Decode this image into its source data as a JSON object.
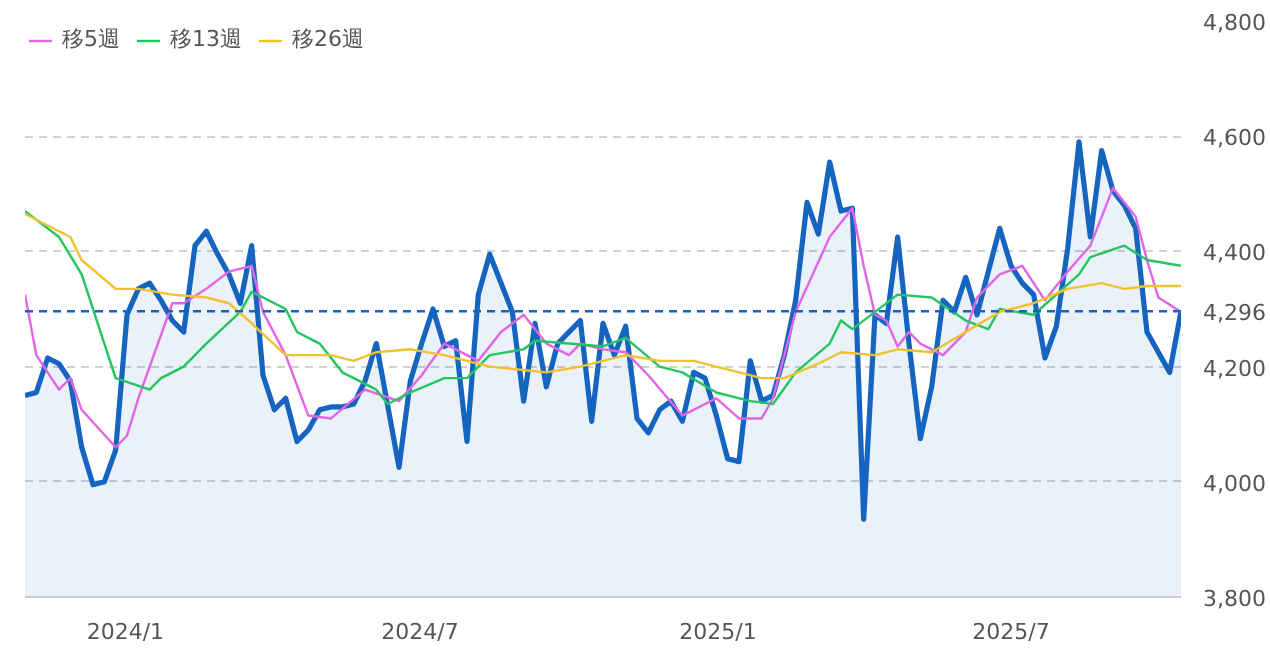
{
  "chart_data": {
    "type": "line",
    "grid": "y",
    "legend": "top left",
    "xlim": [
      "2023-10-31",
      "2025-10-14"
    ],
    "xticks": [
      {
        "value": "2024-01-01",
        "label": "2024/1"
      },
      {
        "value": "2024-07-01",
        "label": "2024/7"
      },
      {
        "value": "2025-01-01",
        "label": "2025/1"
      },
      {
        "value": "2025-07-01",
        "label": "2025/7"
      }
    ],
    "ylim": [
      3800,
      4800
    ],
    "yticks": [
      {
        "value": 3800,
        "label": "3,800"
      },
      {
        "value": 4000,
        "label": "4,000"
      },
      {
        "value": 4200,
        "label": "4,200"
      },
      {
        "value": 4400,
        "label": "4,400"
      },
      {
        "value": 4600,
        "label": "4,600"
      },
      {
        "value": 4800,
        "label": "4,800"
      }
    ],
    "ref_lines": [
      {
        "axis": "y",
        "value": 4296,
        "label": "4,296",
        "color": "#1565c0",
        "line_style": "dashed"
      }
    ],
    "series": [
      {
        "type": "area",
        "color": "#1565c0",
        "x": [
          "2023-10-31",
          "2023-11-07",
          "2023-11-14",
          "2023-11-21",
          "2023-11-28",
          "2023-12-05",
          "2023-12-12",
          "2023-12-19",
          "2023-12-26",
          "2024-01-02",
          "2024-01-09",
          "2024-01-16",
          "2024-01-23",
          "2024-01-30",
          "2024-02-06",
          "2024-02-13",
          "2024-02-20",
          "2024-02-27",
          "2024-03-05",
          "2024-03-12",
          "2024-03-19",
          "2024-03-26",
          "2024-04-02",
          "2024-04-09",
          "2024-04-16",
          "2024-04-23",
          "2024-04-30",
          "2024-05-07",
          "2024-05-14",
          "2024-05-21",
          "2024-05-28",
          "2024-06-04",
          "2024-06-18",
          "2024-06-25",
          "2024-07-02",
          "2024-07-09",
          "2024-07-16",
          "2024-07-23",
          "2024-07-30",
          "2024-08-06",
          "2024-08-13",
          "2024-08-27",
          "2024-09-03",
          "2024-09-10",
          "2024-09-17",
          "2024-09-24",
          "2024-10-08",
          "2024-10-15",
          "2024-10-22",
          "2024-10-29",
          "2024-11-05",
          "2024-11-12",
          "2024-11-19",
          "2024-11-26",
          "2024-12-03",
          "2024-12-10",
          "2024-12-17",
          "2024-12-24",
          "2024-12-31",
          "2025-01-07",
          "2025-01-14",
          "2025-01-21",
          "2025-01-28",
          "2025-02-04",
          "2025-02-11",
          "2025-02-18",
          "2025-02-25",
          "2025-03-04",
          "2025-03-11",
          "2025-03-18",
          "2025-03-25",
          "2025-04-01",
          "2025-04-08",
          "2025-04-15",
          "2025-04-22",
          "2025-04-29",
          "2025-05-06",
          "2025-05-13",
          "2025-05-20",
          "2025-05-27",
          "2025-06-03",
          "2025-06-10",
          "2025-06-24",
          "2025-07-01",
          "2025-07-08",
          "2025-07-15",
          "2025-07-22",
          "2025-07-29",
          "2025-08-05",
          "2025-08-12",
          "2025-08-19",
          "2025-08-26",
          "2025-09-02",
          "2025-09-09",
          "2025-09-16",
          "2025-09-23",
          "2025-09-30",
          "2025-10-07",
          "2025-10-14"
        ],
        "values": [
          4150,
          4155,
          4215,
          4205,
          4175,
          4060,
          3995,
          4000,
          4055,
          4290,
          4335,
          4345,
          4315,
          4280,
          4260,
          4410,
          4435,
          4395,
          4360,
          4310,
          4410,
          4185,
          4125,
          4145,
          4070,
          4090,
          4125,
          4130,
          4130,
          4135,
          4175,
          4240,
          4025,
          4175,
          4240,
          4300,
          4235,
          4245,
          4070,
          4325,
          4395,
          4295,
          4140,
          4275,
          4165,
          4240,
          4280,
          4105,
          4275,
          4220,
          4270,
          4110,
          4085,
          4125,
          4140,
          4105,
          4190,
          4180,
          4115,
          4040,
          4035,
          4210,
          4140,
          4150,
          4220,
          4315,
          4485,
          4430,
          4555,
          4470,
          4475,
          3935,
          4290,
          4275,
          4425,
          4240,
          4075,
          4165,
          4315,
          4295,
          4355,
          4290,
          4440,
          4375,
          4345,
          4325,
          4215,
          4270,
          4405,
          4590,
          4425,
          4575,
          4505,
          4480,
          4440,
          4260,
          4225,
          4190,
          4296
        ]
      },
      {
        "name": "移5週",
        "color": "#e066e6",
        "x": [
          "2023-10-31",
          "2023-11-07",
          "2023-11-21",
          "2023-11-28",
          "2023-12-05",
          "2023-12-26",
          "2024-01-02",
          "2024-01-09",
          "2024-01-30",
          "2024-02-06",
          "2024-02-20",
          "2024-03-05",
          "2024-03-19",
          "2024-03-26",
          "2024-04-09",
          "2024-04-23",
          "2024-05-07",
          "2024-05-28",
          "2024-06-18",
          "2024-07-02",
          "2024-07-16",
          "2024-08-06",
          "2024-08-20",
          "2024-09-03",
          "2024-09-17",
          "2024-10-01",
          "2024-10-08",
          "2024-10-22",
          "2024-11-05",
          "2024-11-19",
          "2024-12-10",
          "2024-12-31",
          "2025-01-14",
          "2025-01-28",
          "2025-02-04",
          "2025-02-18",
          "2025-03-11",
          "2025-03-25",
          "2025-04-01",
          "2025-04-08",
          "2025-04-15",
          "2025-04-22",
          "2025-04-29",
          "2025-05-06",
          "2025-05-20",
          "2025-06-03",
          "2025-06-10",
          "2025-06-24",
          "2025-07-08",
          "2025-07-22",
          "2025-08-05",
          "2025-08-19",
          "2025-09-02",
          "2025-09-16",
          "2025-09-23",
          "2025-09-30",
          "2025-10-14"
        ],
        "values": [
          4325,
          4220,
          4160,
          4180,
          4125,
          4060,
          4080,
          4145,
          4310,
          4310,
          4335,
          4365,
          4375,
          4295,
          4220,
          4115,
          4110,
          4160,
          4140,
          4185,
          4240,
          4210,
          4260,
          4290,
          4240,
          4220,
          4240,
          4230,
          4225,
          4185,
          4115,
          4145,
          4110,
          4110,
          4145,
          4295,
          4425,
          4475,
          4375,
          4290,
          4280,
          4235,
          4260,
          4240,
          4220,
          4260,
          4320,
          4360,
          4375,
          4315,
          4365,
          4410,
          4510,
          4460,
          4385,
          4320,
          4295
        ]
      },
      {
        "name": "移13週",
        "color": "#22c55e",
        "x": [
          "2023-10-31",
          "2023-11-21",
          "2023-12-05",
          "2023-12-19",
          "2023-12-26",
          "2024-01-16",
          "2024-01-23",
          "2024-02-06",
          "2024-02-20",
          "2024-03-12",
          "2024-03-19",
          "2024-04-09",
          "2024-04-16",
          "2024-04-30",
          "2024-05-14",
          "2024-06-04",
          "2024-06-11",
          "2024-06-25",
          "2024-07-16",
          "2024-07-30",
          "2024-08-13",
          "2024-09-03",
          "2024-09-10",
          "2024-10-01",
          "2024-10-22",
          "2024-11-05",
          "2024-11-26",
          "2024-12-10",
          "2024-12-31",
          "2025-01-21",
          "2025-02-04",
          "2025-02-18",
          "2025-03-11",
          "2025-03-18",
          "2025-03-25",
          "2025-04-08",
          "2025-04-22",
          "2025-05-13",
          "2025-06-03",
          "2025-06-17",
          "2025-06-24",
          "2025-07-15",
          "2025-08-12",
          "2025-08-19",
          "2025-09-09",
          "2025-09-23",
          "2025-10-14"
        ],
        "values": [
          4470,
          4425,
          4360,
          4240,
          4180,
          4160,
          4180,
          4200,
          4240,
          4295,
          4330,
          4300,
          4260,
          4240,
          4190,
          4160,
          4135,
          4155,
          4180,
          4180,
          4220,
          4230,
          4245,
          4240,
          4235,
          4250,
          4200,
          4190,
          4155,
          4140,
          4135,
          4190,
          4240,
          4280,
          4265,
          4295,
          4325,
          4320,
          4280,
          4265,
          4300,
          4290,
          4360,
          4390,
          4410,
          4385,
          4375
        ]
      },
      {
        "name": "移26週",
        "color": "#f2c12e",
        "x": [
          "2023-10-31",
          "2023-11-28",
          "2023-12-05",
          "2023-12-26",
          "2024-01-09",
          "2024-01-30",
          "2024-02-20",
          "2024-03-05",
          "2024-03-19",
          "2024-04-09",
          "2024-05-07",
          "2024-05-21",
          "2024-06-04",
          "2024-06-25",
          "2024-07-16",
          "2024-08-13",
          "2024-09-17",
          "2024-10-08",
          "2024-10-22",
          "2024-11-05",
          "2024-11-26",
          "2024-12-17",
          "2025-01-14",
          "2025-01-28",
          "2025-02-11",
          "2025-03-04",
          "2025-03-18",
          "2025-04-08",
          "2025-04-22",
          "2025-05-13",
          "2025-06-03",
          "2025-06-24",
          "2025-07-15",
          "2025-08-05",
          "2025-08-26",
          "2025-09-09",
          "2025-09-23",
          "2025-10-14"
        ],
        "values": [
          4465,
          4425,
          4385,
          4335,
          4335,
          4325,
          4320,
          4310,
          4275,
          4220,
          4220,
          4210,
          4225,
          4230,
          4220,
          4200,
          4190,
          4200,
          4210,
          4220,
          4210,
          4210,
          4190,
          4180,
          4180,
          4205,
          4225,
          4220,
          4230,
          4225,
          4260,
          4295,
          4310,
          4335,
          4345,
          4335,
          4340,
          4340
        ]
      }
    ]
  }
}
